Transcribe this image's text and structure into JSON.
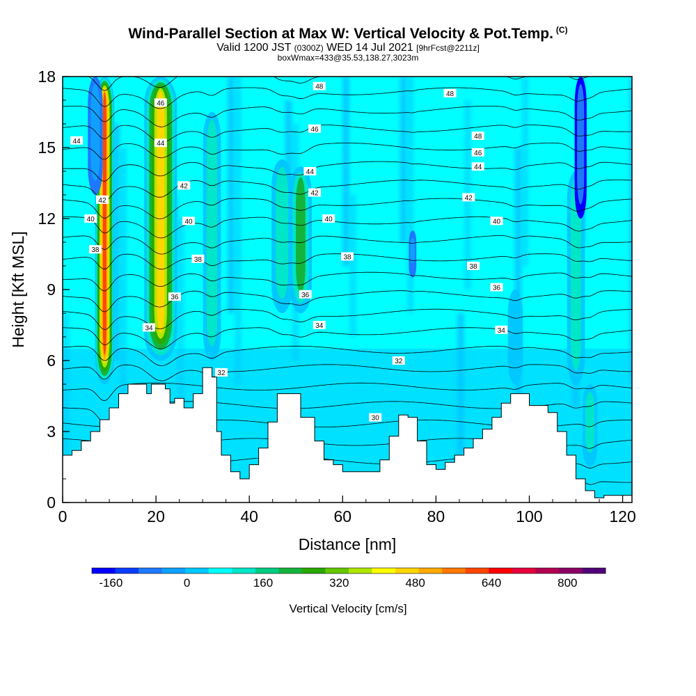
{
  "header": {
    "title": "Wind-Parallel Section at Max W: Vertical Velocity & Pot.Temp.",
    "copyright": "(C)",
    "valid_prefix": "Valid 1200 JST",
    "valid_zulu": "(0300Z)",
    "valid_date": "WED 14 Jul 2021",
    "forecast": "[9hrFcst@2211z]",
    "box_info": "boxWmax=433@35.53,138.27,3023m"
  },
  "chart_data": {
    "type": "heatmap",
    "xlabel": "Distance [nm]",
    "ylabel": "Height [Kft MSL]",
    "xlim": [
      0,
      122
    ],
    "ylim": [
      0,
      18
    ],
    "x_ticks": [
      0,
      20,
      40,
      60,
      80,
      100,
      120
    ],
    "y_ticks": [
      0,
      3,
      6,
      9,
      12,
      15,
      18
    ],
    "colorbar": {
      "label": "Vertical Velocity [cm/s]",
      "tick_labels": [
        -160,
        0,
        160,
        320,
        480,
        640,
        800
      ],
      "colors": [
        "#0000ff",
        "#0a3cff",
        "#1e78ff",
        "#0fa0ff",
        "#00c8ff",
        "#00ffff",
        "#00e6c8",
        "#00cc82",
        "#14b43c",
        "#28aa00",
        "#64c800",
        "#afe600",
        "#ffff00",
        "#ffd700",
        "#ffaa00",
        "#ff7800",
        "#ff4600",
        "#ff0000",
        "#e6003c",
        "#b40050",
        "#8c0064",
        "#500078"
      ]
    },
    "background_level_color": "#00ffff",
    "terrain": [
      [
        0,
        2
      ],
      [
        2,
        2.2
      ],
      [
        4,
        2.6
      ],
      [
        6,
        3.0
      ],
      [
        8,
        3.5
      ],
      [
        10,
        4.0
      ],
      [
        12,
        4.6
      ],
      [
        14,
        5.0
      ],
      [
        17,
        5.0
      ],
      [
        18,
        4.6
      ],
      [
        19,
        5.0
      ],
      [
        20,
        5.0
      ],
      [
        22,
        4.8
      ],
      [
        23,
        4.2
      ],
      [
        24,
        4.4
      ],
      [
        26,
        4.0
      ],
      [
        28,
        4.6
      ],
      [
        30,
        5.7
      ],
      [
        32,
        5.3
      ],
      [
        33,
        3.0
      ],
      [
        34,
        2.0
      ],
      [
        36,
        1.3
      ],
      [
        38,
        1.0
      ],
      [
        40,
        1.6
      ],
      [
        42,
        2.3
      ],
      [
        44,
        3.4
      ],
      [
        46,
        4.6
      ],
      [
        49,
        4.6
      ],
      [
        51,
        3.6
      ],
      [
        54,
        2.6
      ],
      [
        56,
        1.8
      ],
      [
        58,
        1.6
      ],
      [
        60,
        1.3
      ],
      [
        66,
        1.3
      ],
      [
        68,
        1.8
      ],
      [
        70,
        2.8
      ],
      [
        72,
        3.7
      ],
      [
        74,
        3.6
      ],
      [
        76,
        2.6
      ],
      [
        78,
        1.6
      ],
      [
        80,
        1.4
      ],
      [
        82,
        1.7
      ],
      [
        84,
        2.0
      ],
      [
        86,
        2.3
      ],
      [
        88,
        2.7
      ],
      [
        90,
        3.1
      ],
      [
        92,
        3.6
      ],
      [
        94,
        4.2
      ],
      [
        96,
        4.6
      ],
      [
        98,
        4.6
      ],
      [
        100,
        4.1
      ],
      [
        104,
        3.8
      ],
      [
        106,
        3.0
      ],
      [
        108,
        2.0
      ],
      [
        110,
        1.0
      ],
      [
        112,
        0.5
      ],
      [
        114,
        0.2
      ],
      [
        116,
        0.3
      ],
      [
        122,
        0.3
      ]
    ],
    "updrafts": [
      {
        "x": 9,
        "y0": 5.0,
        "y1": 18,
        "w": 1.3,
        "v": 640
      },
      {
        "x": 21,
        "y0": 6.0,
        "y1": 18,
        "w": 2.2,
        "v": 480
      },
      {
        "x": 32,
        "y0": 6.0,
        "y1": 16.5,
        "w": 1.2,
        "v": 160
      },
      {
        "x": 47,
        "y0": 8.0,
        "y1": 14.5,
        "w": 1.4,
        "v": 160
      },
      {
        "x": 51,
        "y0": 8.0,
        "y1": 14.2,
        "w": 1.5,
        "v": 200
      },
      {
        "x": 110,
        "y0": 5.0,
        "y1": 14.0,
        "w": 1.2,
        "v": 160
      },
      {
        "x": 113,
        "y0": 1.5,
        "y1": 5.0,
        "w": 1.0,
        "v": 120
      },
      {
        "x": 97,
        "y0": 5.0,
        "y1": 9.0,
        "w": 1.0,
        "v": 80
      }
    ],
    "downdrafts": [
      {
        "x": 111,
        "y0": 12.0,
        "y1": 18,
        "w": 0.8,
        "v": -160
      },
      {
        "x": 7,
        "y0": 13.0,
        "y1": 18,
        "w": 1.0,
        "v": -80
      },
      {
        "x": 75,
        "y0": 9.5,
        "y1": 11.5,
        "w": 0.5,
        "v": -80
      }
    ],
    "theta_base": 30,
    "contour_labels": [
      {
        "text": "48",
        "x": 55,
        "y": 17.6
      },
      {
        "text": "48",
        "x": 83,
        "y": 17.3
      },
      {
        "text": "48",
        "x": 89,
        "y": 15.5
      },
      {
        "text": "46",
        "x": 21,
        "y": 16.9
      },
      {
        "text": "46",
        "x": 54,
        "y": 15.8
      },
      {
        "text": "46",
        "x": 89,
        "y": 14.8
      },
      {
        "text": "44",
        "x": 3,
        "y": 15.3
      },
      {
        "text": "44",
        "x": 21,
        "y": 15.2
      },
      {
        "text": "44",
        "x": 53,
        "y": 14.0
      },
      {
        "text": "44",
        "x": 89,
        "y": 14.2
      },
      {
        "text": "42",
        "x": 8.5,
        "y": 12.8
      },
      {
        "text": "42",
        "x": 26,
        "y": 13.4
      },
      {
        "text": "42",
        "x": 54,
        "y": 13.1
      },
      {
        "text": "42",
        "x": 87,
        "y": 12.9
      },
      {
        "text": "40",
        "x": 6,
        "y": 12.0
      },
      {
        "text": "40",
        "x": 27,
        "y": 11.9
      },
      {
        "text": "40",
        "x": 57,
        "y": 12.0
      },
      {
        "text": "40",
        "x": 93,
        "y": 11.9
      },
      {
        "text": "38",
        "x": 7,
        "y": 10.7
      },
      {
        "text": "38",
        "x": 29,
        "y": 10.3
      },
      {
        "text": "38",
        "x": 61,
        "y": 10.4
      },
      {
        "text": "38",
        "x": 88,
        "y": 10.0
      },
      {
        "text": "36",
        "x": 24,
        "y": 8.7
      },
      {
        "text": "36",
        "x": 52,
        "y": 8.8
      },
      {
        "text": "36",
        "x": 93,
        "y": 9.1
      },
      {
        "text": "34",
        "x": 18.5,
        "y": 7.4
      },
      {
        "text": "34",
        "x": 55,
        "y": 7.5
      },
      {
        "text": "34",
        "x": 94,
        "y": 7.3
      },
      {
        "text": "32",
        "x": 34,
        "y": 5.5
      },
      {
        "text": "32",
        "x": 72,
        "y": 6.0
      },
      {
        "text": "30",
        "x": 67,
        "y": 3.6
      }
    ]
  }
}
